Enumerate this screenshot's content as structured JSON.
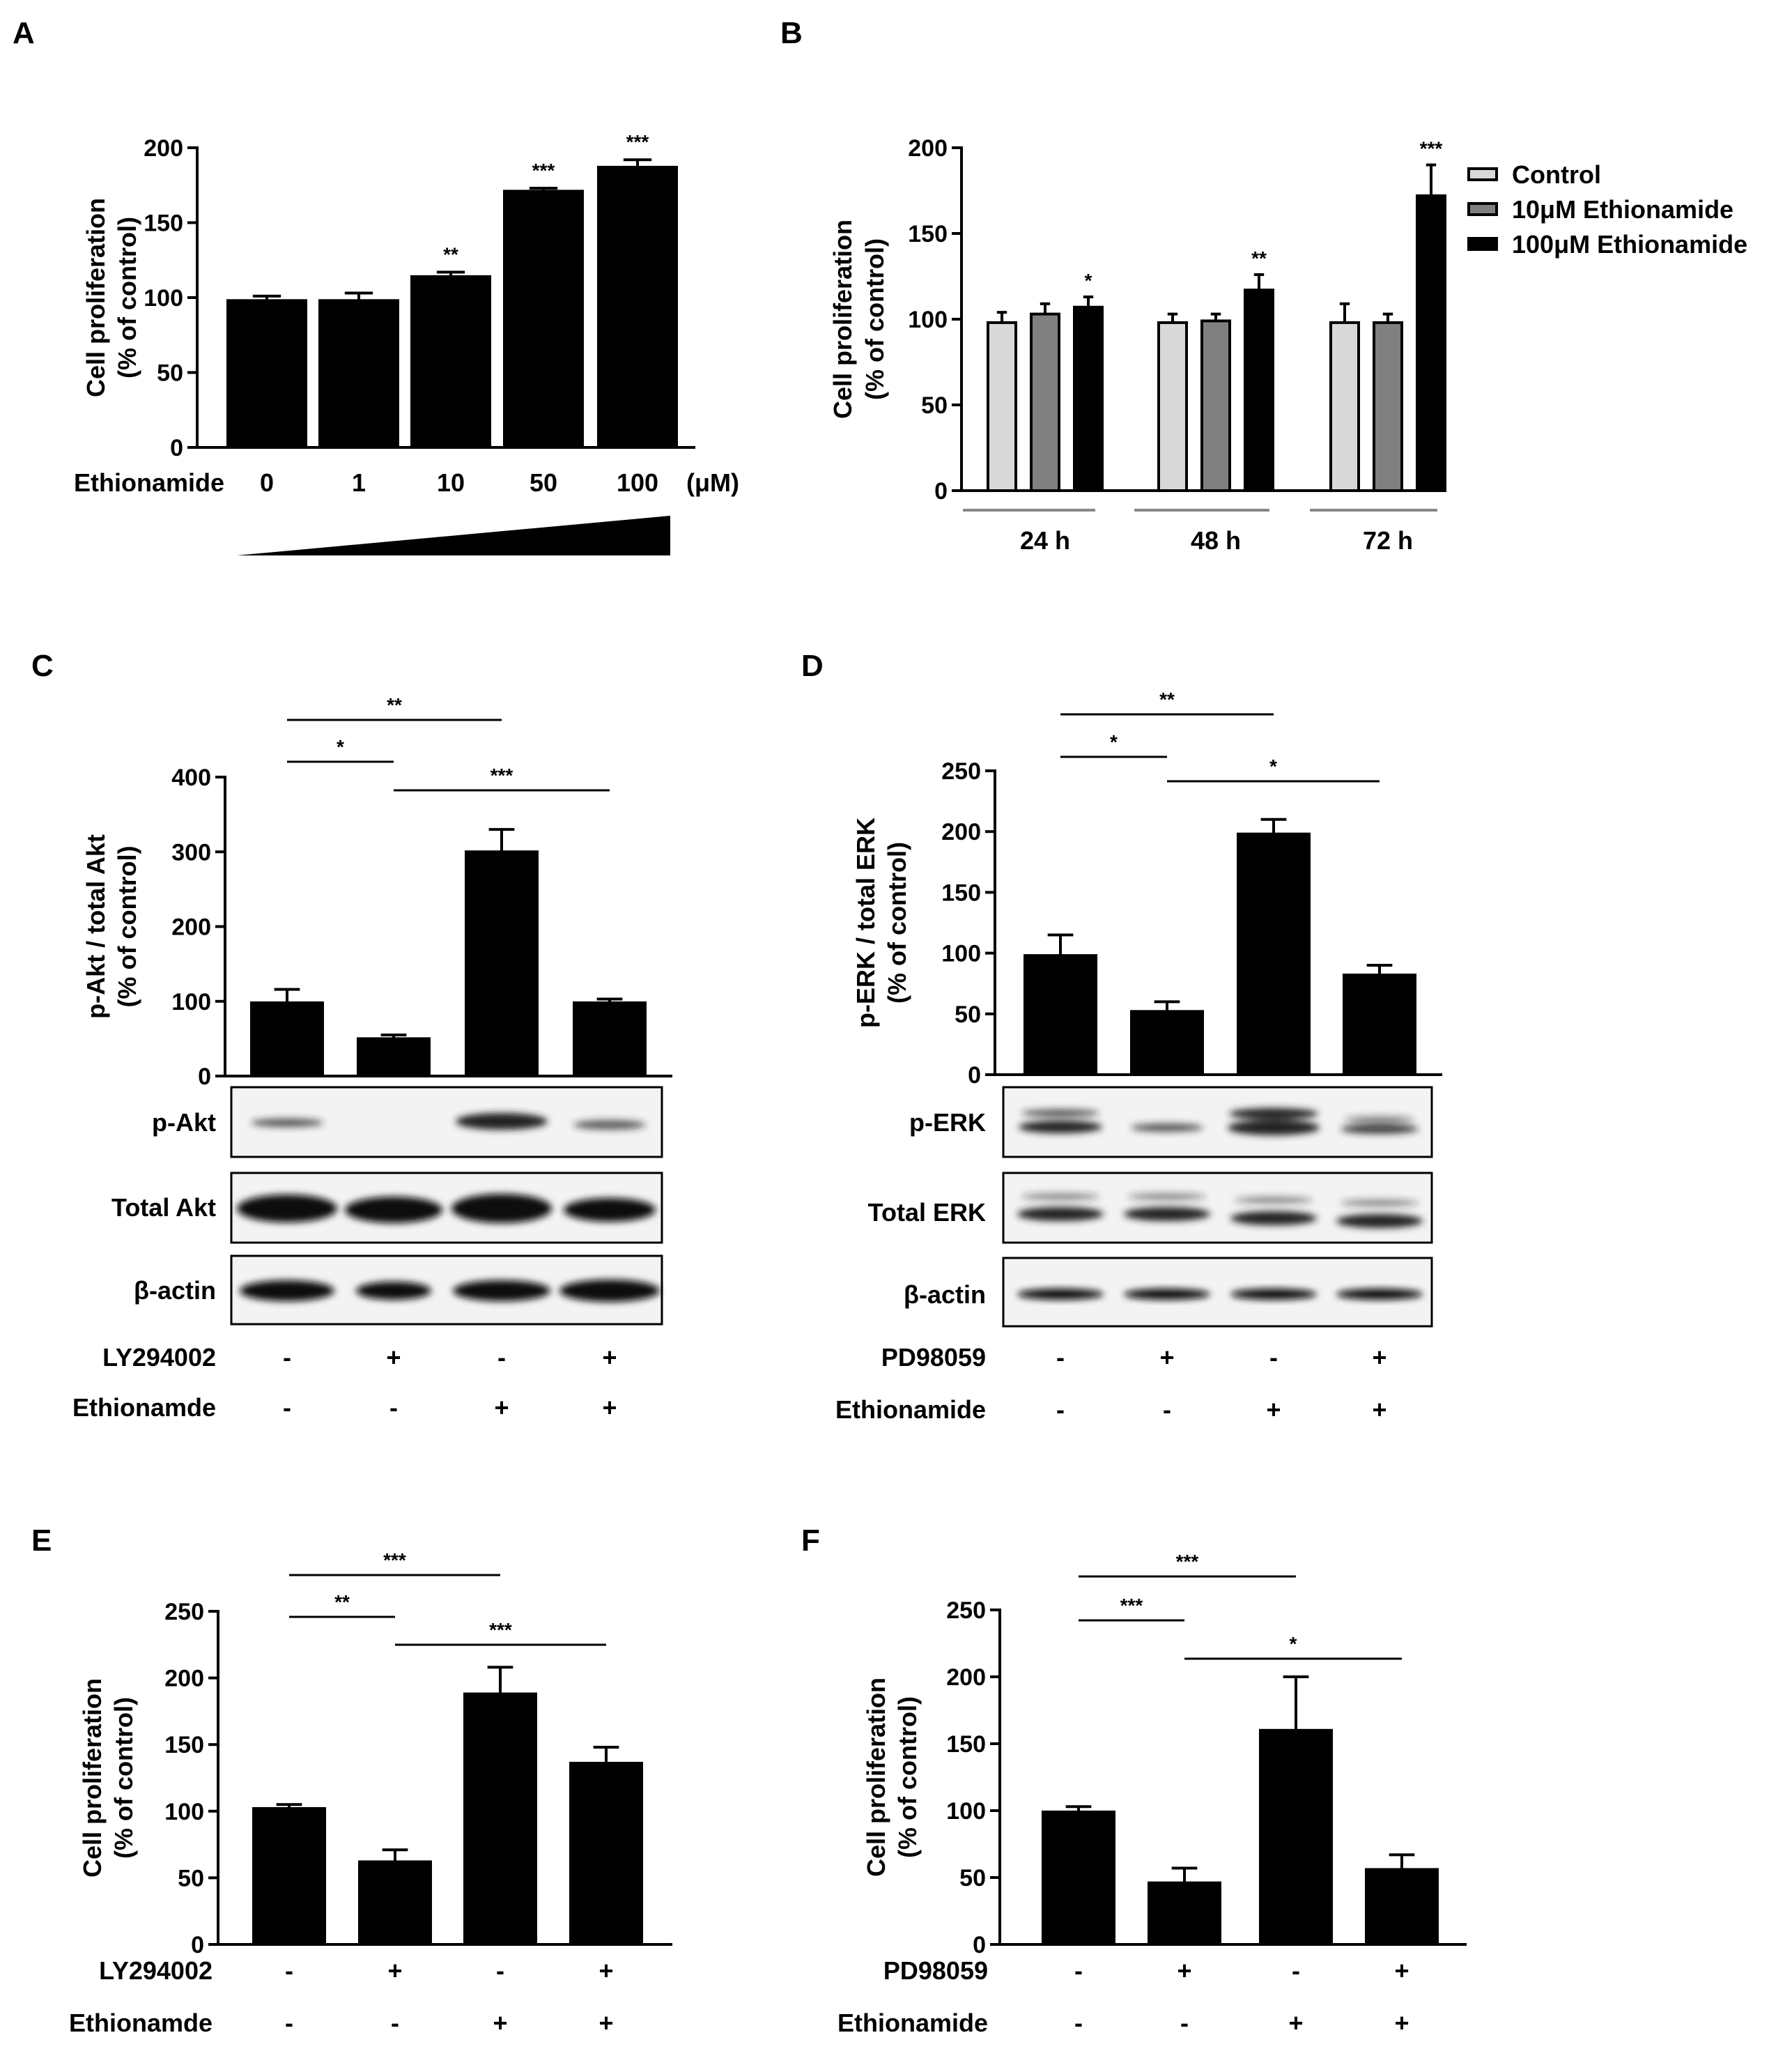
{
  "chart_data": [
    {
      "panel": "A",
      "type": "bar",
      "ylabel": [
        "Cell proliferation",
        "(% of control)"
      ],
      "ylim": [
        0,
        200
      ],
      "yticks": [
        0,
        50,
        100,
        150,
        200
      ],
      "row_label": "Ethionamide",
      "categories": [
        "0",
        "1",
        "10",
        "50",
        "100"
      ],
      "unit": "(μM)",
      "values": [
        98,
        98,
        114,
        171,
        187
      ],
      "errors": [
        3,
        5,
        3,
        2,
        5
      ],
      "stars": [
        "",
        "",
        "**",
        "***",
        "***"
      ],
      "bar_color": "#000000"
    },
    {
      "panel": "B",
      "type": "bar",
      "ylabel": [
        "Cell proliferation",
        "(% of control)"
      ],
      "ylim": [
        0,
        200
      ],
      "yticks": [
        0,
        50,
        100,
        150,
        200
      ],
      "categories": [
        "24 h",
        "48 h",
        "72 h"
      ],
      "series": [
        {
          "name": "Control",
          "color": "#d9d9d9",
          "values": [
            98,
            98,
            98
          ],
          "errors": [
            6,
            5,
            11
          ],
          "stars": [
            "",
            "",
            ""
          ]
        },
        {
          "name": "10μM Ethionamide",
          "color": "#808080",
          "values": [
            103,
            99,
            98
          ],
          "errors": [
            6,
            4,
            5
          ],
          "stars": [
            "",
            "",
            ""
          ]
        },
        {
          "name": "100μM Ethionamide",
          "color": "#000000",
          "values": [
            107,
            117,
            172
          ],
          "errors": [
            6,
            9,
            18
          ],
          "stars": [
            "*",
            "**",
            "***"
          ]
        }
      ]
    },
    {
      "panel": "C",
      "type": "bar",
      "ylabel": [
        "p-Akt / total Akt",
        "(% of control)"
      ],
      "ylim": [
        0,
        400
      ],
      "yticks": [
        0,
        100,
        200,
        300,
        400
      ],
      "values": [
        98,
        50,
        300,
        98
      ],
      "errors": [
        18,
        5,
        30,
        5
      ],
      "brackets": [
        {
          "from": 0,
          "to": 2,
          "label": "**"
        },
        {
          "from": 0,
          "to": 1,
          "label": "*"
        },
        {
          "from": 1,
          "to": 3,
          "label": "***"
        }
      ],
      "blot_labels": [
        "p-Akt",
        "Total Akt",
        "β-actin"
      ],
      "rows": [
        {
          "label": "LY294002",
          "signs": [
            "-",
            "+",
            "-",
            "+"
          ]
        },
        {
          "label": "Ethionamde",
          "signs": [
            "-",
            "-",
            "+",
            "+"
          ]
        }
      ]
    },
    {
      "panel": "D",
      "type": "bar",
      "ylabel": [
        "p-ERK / total ERK",
        "(% of control)"
      ],
      "ylim": [
        0,
        250
      ],
      "yticks": [
        0,
        50,
        100,
        150,
        200,
        250
      ],
      "values": [
        98,
        52,
        198,
        82
      ],
      "errors": [
        17,
        8,
        12,
        8
      ],
      "brackets": [
        {
          "from": 0,
          "to": 2,
          "label": "**"
        },
        {
          "from": 0,
          "to": 1,
          "label": "*"
        },
        {
          "from": 1,
          "to": 3,
          "label": "*"
        }
      ],
      "blot_labels": [
        "p-ERK",
        "Total ERK",
        "β-actin"
      ],
      "rows": [
        {
          "label": "PD98059",
          "signs": [
            "-",
            "+",
            "-",
            "+"
          ]
        },
        {
          "label": "Ethionamide",
          "signs": [
            "-",
            "-",
            "+",
            "+"
          ]
        }
      ]
    },
    {
      "panel": "E",
      "type": "bar",
      "ylabel": [
        "Cell proliferation",
        "(% of control)"
      ],
      "ylim": [
        0,
        250
      ],
      "yticks": [
        0,
        50,
        100,
        150,
        200,
        250
      ],
      "values": [
        102,
        62,
        188,
        136
      ],
      "errors": [
        3,
        9,
        20,
        12
      ],
      "brackets": [
        {
          "from": 0,
          "to": 2,
          "label": "***"
        },
        {
          "from": 0,
          "to": 1,
          "label": "**"
        },
        {
          "from": 1,
          "to": 3,
          "label": "***"
        }
      ],
      "rows": [
        {
          "label": "LY294002",
          "signs": [
            "-",
            "+",
            "-",
            "+"
          ]
        },
        {
          "label": "Ethionamde",
          "signs": [
            "-",
            "-",
            "+",
            "+"
          ]
        }
      ]
    },
    {
      "panel": "F",
      "type": "bar",
      "ylabel": [
        "Cell proliferation",
        "(% of control)"
      ],
      "ylim": [
        0,
        250
      ],
      "yticks": [
        0,
        50,
        100,
        150,
        200,
        250
      ],
      "values": [
        99,
        46,
        160,
        56
      ],
      "errors": [
        4,
        11,
        40,
        11
      ],
      "brackets": [
        {
          "from": 0,
          "to": 2,
          "label": "***"
        },
        {
          "from": 0,
          "to": 1,
          "label": "***"
        },
        {
          "from": 1,
          "to": 3,
          "label": "*"
        }
      ],
      "rows": [
        {
          "label": "PD98059",
          "signs": [
            "-",
            "+",
            "-",
            "+"
          ]
        },
        {
          "label": "Ethionamide",
          "signs": [
            "-",
            "-",
            "+",
            "+"
          ]
        }
      ]
    }
  ]
}
